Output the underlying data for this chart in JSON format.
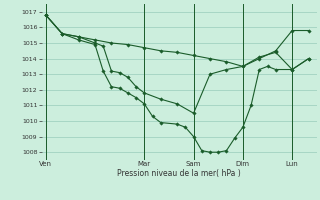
{
  "background_color": "#cceedd",
  "grid_color": "#99ccbb",
  "line_color": "#1a5c2a",
  "marker_color": "#1a5c2a",
  "xlabel": "Pression niveau de la mer( hPa )",
  "ylim": [
    1007.5,
    1017.5
  ],
  "yticks": [
    1008,
    1009,
    1010,
    1011,
    1012,
    1013,
    1014,
    1015,
    1016,
    1017
  ],
  "day_labels": [
    "Ven",
    "Mar",
    "Sam",
    "Dim",
    "Lun"
  ],
  "day_positions": [
    0,
    12,
    18,
    24,
    30
  ],
  "xlim": [
    -0.5,
    33
  ],
  "series1": {
    "x": [
      0,
      2,
      4,
      6,
      8,
      10,
      12,
      14,
      16,
      18,
      20,
      22,
      24,
      26,
      28,
      30,
      32
    ],
    "y": [
      1016.8,
      1015.6,
      1015.4,
      1015.2,
      1015.0,
      1014.9,
      1014.7,
      1014.5,
      1014.4,
      1014.2,
      1014.0,
      1013.8,
      1013.5,
      1014.0,
      1014.5,
      1015.8,
      1015.8
    ]
  },
  "series2": {
    "x": [
      0,
      2,
      4,
      6,
      7,
      8,
      9,
      10,
      11,
      12,
      14,
      16,
      18,
      20,
      22,
      24,
      26,
      28,
      30,
      32
    ],
    "y": [
      1016.8,
      1015.6,
      1015.4,
      1015.0,
      1014.8,
      1013.2,
      1013.1,
      1012.8,
      1012.2,
      1011.8,
      1011.4,
      1011.1,
      1010.5,
      1013.0,
      1013.3,
      1013.5,
      1014.1,
      1014.4,
      1013.3,
      1014.0
    ]
  },
  "series3": {
    "x": [
      0,
      2,
      4,
      6,
      7,
      8,
      9,
      10,
      11,
      12,
      13,
      14,
      16,
      17,
      18,
      19,
      20,
      21,
      22,
      23,
      24,
      25,
      26,
      27,
      28,
      30,
      32
    ],
    "y": [
      1016.8,
      1015.6,
      1015.2,
      1014.9,
      1013.2,
      1012.2,
      1012.1,
      1011.8,
      1011.5,
      1011.1,
      1010.3,
      1009.9,
      1009.8,
      1009.6,
      1009.0,
      1008.1,
      1008.0,
      1008.0,
      1008.1,
      1008.9,
      1009.6,
      1011.0,
      1013.3,
      1013.5,
      1013.3,
      1013.3,
      1014.0
    ]
  }
}
